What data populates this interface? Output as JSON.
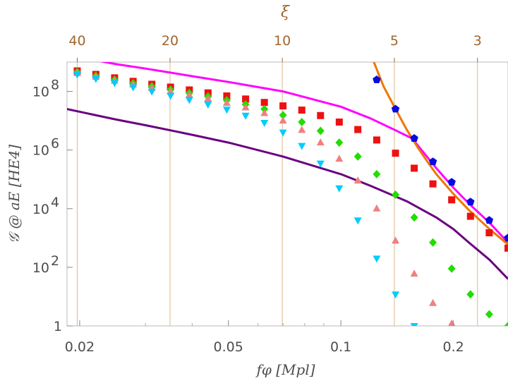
{
  "chart_data": {
    "type": "scatter",
    "title": "",
    "xscale": "log",
    "yscale": "log",
    "xlim": [
      0.0185,
      0.28
    ],
    "ylim": [
      1,
      1000000000
    ],
    "xlabel": "fφ [Mpl]",
    "ylabel": "𝒢 @ aE [HE4]",
    "top_axis_label": "ξ",
    "top_axis_ticks": [
      {
        "label": "40",
        "x": 0.0197
      },
      {
        "label": "20",
        "x": 0.0349
      },
      {
        "label": "10",
        "x": 0.0697
      },
      {
        "label": "5",
        "x": 0.139
      },
      {
        "label": "3",
        "x": 0.232
      }
    ],
    "x_ticks": [
      {
        "label": "0.02",
        "value": 0.02
      },
      {
        "label": "0.05",
        "value": 0.05
      },
      {
        "label": "0.1",
        "value": 0.1
      },
      {
        "label": "0.2",
        "value": 0.2
      }
    ],
    "y_ticks": [
      {
        "exp": 0,
        "label": "1",
        "sup": ""
      },
      {
        "exp": 2,
        "label": "10",
        "sup": "2"
      },
      {
        "exp": 4,
        "label": "10",
        "sup": "4"
      },
      {
        "exp": 6,
        "label": "10",
        "sup": "6"
      },
      {
        "exp": 8,
        "label": "10",
        "sup": "8"
      }
    ],
    "grid": "vertical at top-axis ticks",
    "series": [
      {
        "name": "red squares",
        "marker": "square",
        "color": "#ee1111",
        "x": [
          0.0197,
          0.0221,
          0.0248,
          0.0278,
          0.0312,
          0.035,
          0.0393,
          0.0441,
          0.0495,
          0.0556,
          0.0624,
          0.07,
          0.0786,
          0.0882,
          0.099,
          0.111,
          0.1247,
          0.14,
          0.1571,
          0.1763,
          0.1979,
          0.2222,
          0.2494,
          0.28
        ],
        "y": [
          500000000,
          380000000,
          290000000,
          220000000,
          175000000,
          140000000,
          112000000,
          89000000,
          70000000,
          55000000,
          42000000,
          32000000,
          23000000,
          15000000,
          9000000,
          5000000,
          2200000,
          780000,
          240000,
          70000,
          20000,
          5500,
          1500,
          450
        ]
      },
      {
        "name": "green diamonds",
        "marker": "diamond",
        "color": "#22dd00",
        "x": [
          0.0197,
          0.0221,
          0.0248,
          0.0278,
          0.0312,
          0.035,
          0.0393,
          0.0441,
          0.0495,
          0.0556,
          0.0624,
          0.07,
          0.0786,
          0.0882,
          0.099,
          0.111,
          0.1247,
          0.14,
          0.1571,
          0.1763,
          0.1979,
          0.2222,
          0.2494,
          0.28
        ],
        "y": [
          460000000,
          340000000,
          250000000,
          190000000,
          150000000,
          115000000,
          88000000,
          67000000,
          50000000,
          36000000,
          25000000,
          15500000,
          9000000,
          4500000,
          1800000,
          600000,
          150000,
          30000,
          5000,
          700,
          90,
          12,
          2.5,
          1
        ]
      },
      {
        "name": "salmon triangles",
        "marker": "triangle-up",
        "color": "#f08080",
        "x": [
          0.0197,
          0.0221,
          0.0248,
          0.0278,
          0.0312,
          0.035,
          0.0393,
          0.0441,
          0.0495,
          0.0556,
          0.0624,
          0.07,
          0.0786,
          0.0882,
          0.099,
          0.111,
          0.1247,
          0.14,
          0.1571,
          0.1763,
          0.1979
        ],
        "y": [
          420000000,
          310000000,
          230000000,
          170000000,
          130000000,
          100000000,
          75000000,
          56000000,
          40000000,
          28000000,
          18000000,
          10000000,
          4800000,
          1800000,
          500000,
          90000,
          10000,
          800,
          60,
          6,
          1.2
        ]
      },
      {
        "name": "cyan triangles",
        "marker": "triangle-down",
        "color": "#00ccff",
        "x": [
          0.0197,
          0.0221,
          0.0248,
          0.0278,
          0.0312,
          0.035,
          0.0393,
          0.0441,
          0.0495,
          0.0556,
          0.0624,
          0.07,
          0.0786,
          0.0882,
          0.099,
          0.111,
          0.1247,
          0.14,
          0.1571
        ],
        "y": [
          380000000,
          270000000,
          195000000,
          140000000,
          100000000,
          72000000,
          52000000,
          36000000,
          24000000,
          15000000,
          8500000,
          4000000,
          1400000,
          350000,
          50000,
          4000,
          200,
          12,
          1
        ]
      },
      {
        "name": "blue pentagons",
        "marker": "pentagon",
        "color": "#0a0ae0",
        "x": [
          0.1247,
          0.14,
          0.1571,
          0.1763,
          0.1979,
          0.2222,
          0.2494,
          0.28
        ],
        "y": [
          250000000,
          25000000,
          2500000,
          400000,
          80000,
          17000,
          4000,
          1000
        ]
      }
    ],
    "lines": [
      {
        "name": "magenta curve",
        "color": "#ff00ff",
        "x": [
          0.021,
          0.025,
          0.03,
          0.04,
          0.05,
          0.07,
          0.1,
          0.12,
          0.14,
          0.155,
          0.18,
          0.2,
          0.22,
          0.25,
          0.28
        ],
        "y": [
          1300000000,
          850000000,
          600000000,
          330000000,
          210000000,
          100000000,
          30000000,
          12000000,
          4700000,
          2500000,
          240000,
          52000,
          15000,
          3300,
          700
        ]
      },
      {
        "name": "purple curve",
        "color": "#6a0080",
        "x": [
          0.0185,
          0.025,
          0.03,
          0.04,
          0.05,
          0.07,
          0.1,
          0.12,
          0.15,
          0.18,
          0.2,
          0.22,
          0.25,
          0.28
        ],
        "y": [
          25000000,
          11000000,
          7000000,
          3300000,
          1800000,
          600000,
          150000,
          60000,
          18000,
          5000,
          2000,
          700,
          180,
          40
        ]
      },
      {
        "name": "orange curve",
        "color": "#ee7700",
        "x": [
          0.121,
          0.13,
          0.14,
          0.15,
          0.16,
          0.17,
          0.18,
          0.2,
          0.22,
          0.25,
          0.28
        ],
        "y": [
          1500000000,
          150000000,
          25000000,
          5000000,
          1300000,
          420000,
          150000,
          32000,
          9000,
          2000,
          600
        ]
      }
    ]
  }
}
